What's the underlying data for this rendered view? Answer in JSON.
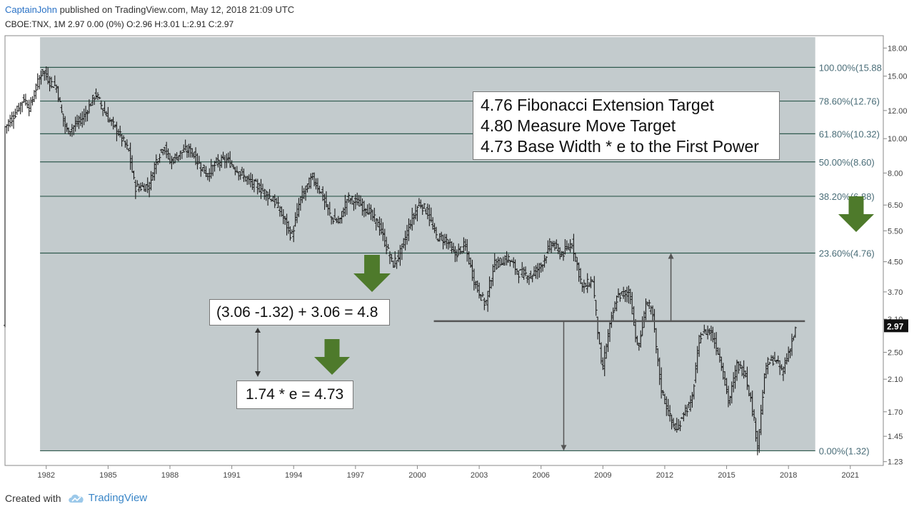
{
  "header": {
    "user": "CaptainJohn",
    "published": "published on TradingView.com, May 12, 2018 21:09 UTC",
    "quote": "CBOE:TNX, 1M  2.97  0.00 (0%)  O:2.96  H:3.01  L:2.91  C:2.97"
  },
  "footer": {
    "created_with": "Created with",
    "brand": "TradingView"
  },
  "colors": {
    "plot_bg": "#c3cbcd",
    "fib_line": "#2f5a4e",
    "bars": "#1a1a1a",
    "arrow": "#4e7a2b",
    "annot_line": "#555555"
  },
  "chart_data": {
    "type": "line",
    "instrument": "CBOE:TNX",
    "interval": "1M",
    "last_price": "2.97",
    "y_scale": "log",
    "ylim": [
      1.2,
      19.5
    ],
    "xlim": [
      1980.0,
      2022.6
    ],
    "x_ticks": [
      "1982",
      "1985",
      "1988",
      "1991",
      "1994",
      "1997",
      "2000",
      "2003",
      "2006",
      "2009",
      "2012",
      "2015",
      "2018",
      "2021"
    ],
    "y_ticks": [
      "18.00",
      "15.00",
      "12.00",
      "10.00",
      "8.00",
      "6.50",
      "5.50",
      "4.50",
      "3.70",
      "3.10",
      "2.50",
      "2.10",
      "1.70",
      "1.45",
      "1.23"
    ],
    "fib_levels": [
      {
        "label": "100.00%(15.88",
        "value": 15.88
      },
      {
        "label": "78.60%(12.76)",
        "value": 12.76
      },
      {
        "label": "61.80%(10.32)",
        "value": 10.32
      },
      {
        "label": "50.00%(8.60)",
        "value": 8.6
      },
      {
        "label": "38.20%(6.88)",
        "value": 6.88
      },
      {
        "label": "23.60%(4.76)",
        "value": 4.76
      },
      {
        "label": "0.00%(1.32)",
        "value": 1.32
      }
    ],
    "fib_range": {
      "x_start": 1981.7,
      "x_end": 2019.3
    },
    "resistance": {
      "value": 3.06,
      "x_start": 2000.8,
      "x_end": 2018.8
    },
    "projection_up": {
      "x": 2012.3,
      "from": 3.06,
      "to": 4.76
    },
    "projection_down": {
      "x": 2007.1,
      "from": 3.06,
      "to": 1.32
    },
    "price_path": [
      [
        1980.0,
        10.8
      ],
      [
        1980.5,
        11.8
      ],
      [
        1980.9,
        13.0
      ],
      [
        1981.2,
        12.2
      ],
      [
        1981.5,
        13.9
      ],
      [
        1981.8,
        15.6
      ],
      [
        1982.2,
        14.4
      ],
      [
        1982.5,
        14.0
      ],
      [
        1982.8,
        11.4
      ],
      [
        1983.0,
        10.5
      ],
      [
        1983.4,
        10.9
      ],
      [
        1983.8,
        11.5
      ],
      [
        1984.4,
        13.4
      ],
      [
        1984.7,
        12.3
      ],
      [
        1985.0,
        11.4
      ],
      [
        1985.5,
        10.4
      ],
      [
        1986.0,
        9.2
      ],
      [
        1986.3,
        7.3
      ],
      [
        1986.6,
        7.3
      ],
      [
        1987.0,
        7.4
      ],
      [
        1987.3,
        8.6
      ],
      [
        1987.7,
        9.6
      ],
      [
        1988.0,
        8.6
      ],
      [
        1988.6,
        9.2
      ],
      [
        1989.0,
        9.3
      ],
      [
        1989.4,
        8.5
      ],
      [
        1989.8,
        7.9
      ],
      [
        1990.3,
        8.6
      ],
      [
        1990.8,
        8.7
      ],
      [
        1991.3,
        8.1
      ],
      [
        1991.8,
        7.6
      ],
      [
        1992.3,
        7.3
      ],
      [
        1992.8,
        6.9
      ],
      [
        1993.2,
        6.5
      ],
      [
        1993.6,
        5.8
      ],
      [
        1993.9,
        5.3
      ],
      [
        1994.3,
        6.7
      ],
      [
        1994.9,
        7.8
      ],
      [
        1995.3,
        7.1
      ],
      [
        1995.8,
        6.0
      ],
      [
        1996.2,
        5.8
      ],
      [
        1996.6,
        6.8
      ],
      [
        1997.1,
        6.6
      ],
      [
        1997.6,
        6.3
      ],
      [
        1998.2,
        5.6
      ],
      [
        1998.8,
        4.4
      ],
      [
        1999.2,
        4.8
      ],
      [
        1999.6,
        5.7
      ],
      [
        2000.1,
        6.6
      ],
      [
        2000.5,
        6.2
      ],
      [
        2000.9,
        5.3
      ],
      [
        2001.4,
        5.2
      ],
      [
        2001.8,
        4.7
      ],
      [
        2002.3,
        5.0
      ],
      [
        2002.8,
        3.9
      ],
      [
        2003.3,
        3.4
      ],
      [
        2003.7,
        4.4
      ],
      [
        2004.4,
        4.6
      ],
      [
        2004.9,
        4.2
      ],
      [
        2005.5,
        4.1
      ],
      [
        2006.0,
        4.4
      ],
      [
        2006.5,
        5.1
      ],
      [
        2007.0,
        4.7
      ],
      [
        2007.5,
        5.1
      ],
      [
        2008.0,
        3.8
      ],
      [
        2008.5,
        4.0
      ],
      [
        2008.95,
        2.2
      ],
      [
        2009.3,
        2.9
      ],
      [
        2009.7,
        3.6
      ],
      [
        2010.3,
        3.7
      ],
      [
        2010.7,
        2.5
      ],
      [
        2011.1,
        3.5
      ],
      [
        2011.4,
        3.2
      ],
      [
        2011.8,
        2.0
      ],
      [
        2012.3,
        1.6
      ],
      [
        2012.6,
        1.5
      ],
      [
        2012.9,
        1.7
      ],
      [
        2013.3,
        1.8
      ],
      [
        2013.7,
        2.8
      ],
      [
        2014.2,
        2.9
      ],
      [
        2014.7,
        2.4
      ],
      [
        2015.1,
        1.8
      ],
      [
        2015.5,
        2.3
      ],
      [
        2015.9,
        2.2
      ],
      [
        2016.2,
        1.8
      ],
      [
        2016.5,
        1.37
      ],
      [
        2016.9,
        2.3
      ],
      [
        2017.3,
        2.4
      ],
      [
        2017.7,
        2.2
      ],
      [
        2018.0,
        2.5
      ],
      [
        2018.4,
        2.97
      ]
    ]
  },
  "annotations": {
    "targets": [
      "4.76 Fibonacci Extension Target",
      "4.80 Measure Move Target",
      "4.73 Base Width * e to the First Power"
    ],
    "formula_top": "(3.06 -1.32) + 3.06 = 4.8",
    "formula_bottom": "1.74 * e = 4.73",
    "price_badge": "2.97"
  }
}
